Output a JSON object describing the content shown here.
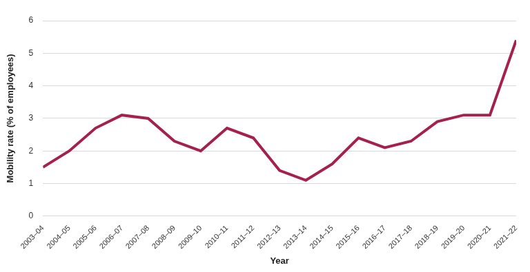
{
  "chart_data": {
    "type": "line",
    "x_label": "Year",
    "y_label": "Mobility rate (% of employees)",
    "categories": [
      "2003–04",
      "2004–05",
      "2005–06",
      "2006–07",
      "2007–08",
      "2008–09",
      "2009–10",
      "2010–11",
      "2011–12",
      "2012–13",
      "2013–14",
      "2014–15",
      "2015–16",
      "2016–17",
      "2017–18",
      "2018–19",
      "2019–20",
      "2020–21",
      "2021–22"
    ],
    "values": [
      1.5,
      2.0,
      2.7,
      3.1,
      3.0,
      2.3,
      2.0,
      2.7,
      2.4,
      1.4,
      1.1,
      1.6,
      2.4,
      2.1,
      2.3,
      2.9,
      3.1,
      3.1,
      5.4
    ],
    "color": "#a6204f",
    "ylim": [
      0,
      6
    ],
    "yticks": [
      0,
      1,
      2,
      3,
      4,
      5,
      6
    ],
    "grid": true
  }
}
